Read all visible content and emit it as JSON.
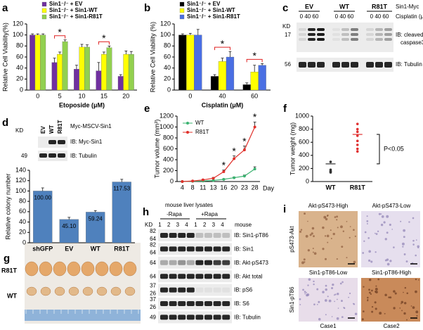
{
  "chart_data": [
    {
      "type": "bar",
      "ylabel": "Relative Cell Viability(%)",
      "xlabel": "Etoposide (μM)",
      "categories": [
        "0",
        "5",
        "10",
        "15",
        "20"
      ],
      "series": [
        {
          "name": "Sin1⁻/⁻ + EV",
          "color": "#7030a0",
          "values": [
            100,
            50,
            38,
            35,
            25
          ],
          "errors": [
            2,
            8,
            7,
            15,
            3
          ]
        },
        {
          "name": "Sin1⁻/⁻ + Sin1-WT",
          "color": "#ffff00",
          "values": [
            100,
            65,
            78,
            65,
            65
          ],
          "errors": [
            2,
            4,
            5,
            4,
            6
          ]
        },
        {
          "name": "Sin1⁻/⁻ + Sin1-R81T",
          "color": "#92d050",
          "values": [
            100,
            88,
            78,
            77,
            65
          ],
          "errors": [
            2,
            3,
            4,
            3,
            5
          ]
        }
      ],
      "ylim": [
        0,
        120
      ],
      "yticks": [
        0,
        20,
        40,
        60,
        80,
        100,
        120
      ],
      "annotations": [
        "*",
        "*"
      ]
    },
    {
      "type": "bar",
      "ylabel": "Relative Cell Viability (%)",
      "xlabel": "Cisplatin (μM)",
      "categories": [
        "0",
        "40",
        "60"
      ],
      "series": [
        {
          "name": "Sin1⁻/⁻ + EV",
          "color": "#000000",
          "values": [
            100,
            25,
            10
          ],
          "errors": [
            2,
            3,
            3
          ]
        },
        {
          "name": "Sin1⁻/⁻ + Sin1-WT",
          "color": "#ffff00",
          "values": [
            100,
            52,
            33
          ],
          "errors": [
            3,
            6,
            12
          ]
        },
        {
          "name": "Sin1⁻/⁻ + Sin1-R81T",
          "color": "#4a6fe3",
          "values": [
            100,
            60,
            45
          ],
          "errors": [
            10,
            10,
            3
          ]
        }
      ],
      "ylim": [
        0,
        120
      ],
      "yticks": [
        0,
        20,
        40,
        60,
        80,
        100,
        120
      ],
      "annotations": [
        "*",
        "*"
      ]
    },
    {
      "type": "bar",
      "ylabel": "Relative colony number",
      "categories": [
        "shGFP",
        "EV",
        "WT",
        "R81T"
      ],
      "values": [
        100,
        45.1,
        59.24,
        117.53
      ],
      "value_labels": [
        "100.00",
        "45.10",
        "59.24",
        "117.53"
      ],
      "errors": [
        6,
        4,
        3,
        5
      ],
      "color": "#4f81bd",
      "ylim": [
        0,
        140
      ],
      "yticks": [
        0,
        20,
        40,
        60,
        80,
        100,
        120,
        140
      ]
    },
    {
      "type": "line",
      "ylabel": "Tumor volume (mm³)",
      "xlabel": "Day",
      "categories": [
        "4",
        "8",
        "11",
        "13",
        "16",
        "20",
        "23",
        "28"
      ],
      "series": [
        {
          "name": "WT",
          "color": "#3cb371",
          "values": [
            0,
            5,
            10,
            20,
            40,
            70,
            100,
            230
          ],
          "errors": [
            0,
            2,
            3,
            5,
            8,
            12,
            20,
            40
          ]
        },
        {
          "name": "R81T",
          "color": "#e0302a",
          "values": [
            0,
            10,
            30,
            60,
            180,
            420,
            580,
            1000
          ],
          "errors": [
            0,
            3,
            8,
            15,
            30,
            50,
            70,
            90
          ]
        }
      ],
      "ylim": [
        0,
        1200
      ],
      "yticks": [
        0,
        200,
        400,
        600,
        800,
        1000,
        1200
      ],
      "annotations": [
        "*",
        "*",
        "*",
        "*"
      ]
    },
    {
      "type": "dot",
      "ylabel": "Tumor weight (mg)",
      "categories": [
        "WT",
        "R81T"
      ],
      "points": [
        [
          300,
          180,
          160,
          150,
          140
        ],
        [
          880,
          800,
          760,
          700,
          620,
          560,
          500,
          460
        ]
      ],
      "means": [
        270,
        720
      ],
      "colors": [
        "#333333",
        "#e03030"
      ],
      "ylim": [
        0,
        1000
      ],
      "yticks": [
        0,
        200,
        400,
        600,
        800,
        1000
      ],
      "annotations": [
        "P<0.05"
      ]
    }
  ],
  "panel_labels": [
    "a",
    "b",
    "c",
    "d",
    "e",
    "f",
    "g",
    "h",
    "i"
  ],
  "blot_c": {
    "groups": [
      "EV",
      "WT",
      "R81T"
    ],
    "construct": "Sin1-Myc",
    "doses": [
      "0 40 60",
      "0 40 60",
      "0 40 60"
    ],
    "dose_label": "Cisplatin (μM)",
    "kd_label": "KD",
    "kd": [
      "17",
      "56"
    ],
    "labels": [
      "IB: cleaved",
      "caspase3",
      "IB: Tubulin"
    ]
  },
  "blot_d": {
    "kd_label": "KD",
    "lanes": [
      "EV",
      "WT",
      "R81T"
    ],
    "construct": "Myc-MSCV-Sin1",
    "kd": [
      "49"
    ],
    "labels": [
      "IB: Myc-Sin1",
      "IB: Tubulin"
    ]
  },
  "photo_g": {
    "rows": [
      "R81T",
      "WT"
    ]
  },
  "blot_h": {
    "title": "mouse liver lysates",
    "groups": [
      "-Rapa",
      "+Rapa"
    ],
    "kd_label": "KD",
    "lanes": [
      "1 2 3 4",
      "1 2 3 4"
    ],
    "lane_label": "mouse",
    "rows": [
      {
        "label": "IB: Sin1-pT86",
        "kd": [
          "82",
          "64"
        ]
      },
      {
        "label": "IB: Sin1",
        "kd": [
          "82",
          "64"
        ]
      },
      {
        "label": "IB: Akt-pS473",
        "kd": [
          "64"
        ]
      },
      {
        "label": "IB: Akt total",
        "kd": [
          "64"
        ]
      },
      {
        "label": "IB: pS6",
        "kd": [
          "37",
          "26"
        ]
      },
      {
        "label": "IB: S6",
        "kd": [
          "37",
          "26"
        ]
      },
      {
        "label": "IB: Tubulin",
        "kd": [
          "49"
        ]
      }
    ]
  },
  "ihc_i": {
    "top": [
      "Akt-pS473-High",
      "Akt-pS473-Low"
    ],
    "bottom": [
      "Sin1-pT86-Low",
      "Sin1-pT86-High"
    ],
    "rows": [
      "pS473-Akt",
      "Sin1-pT86"
    ],
    "cases": [
      "Case1",
      "Case2"
    ]
  }
}
